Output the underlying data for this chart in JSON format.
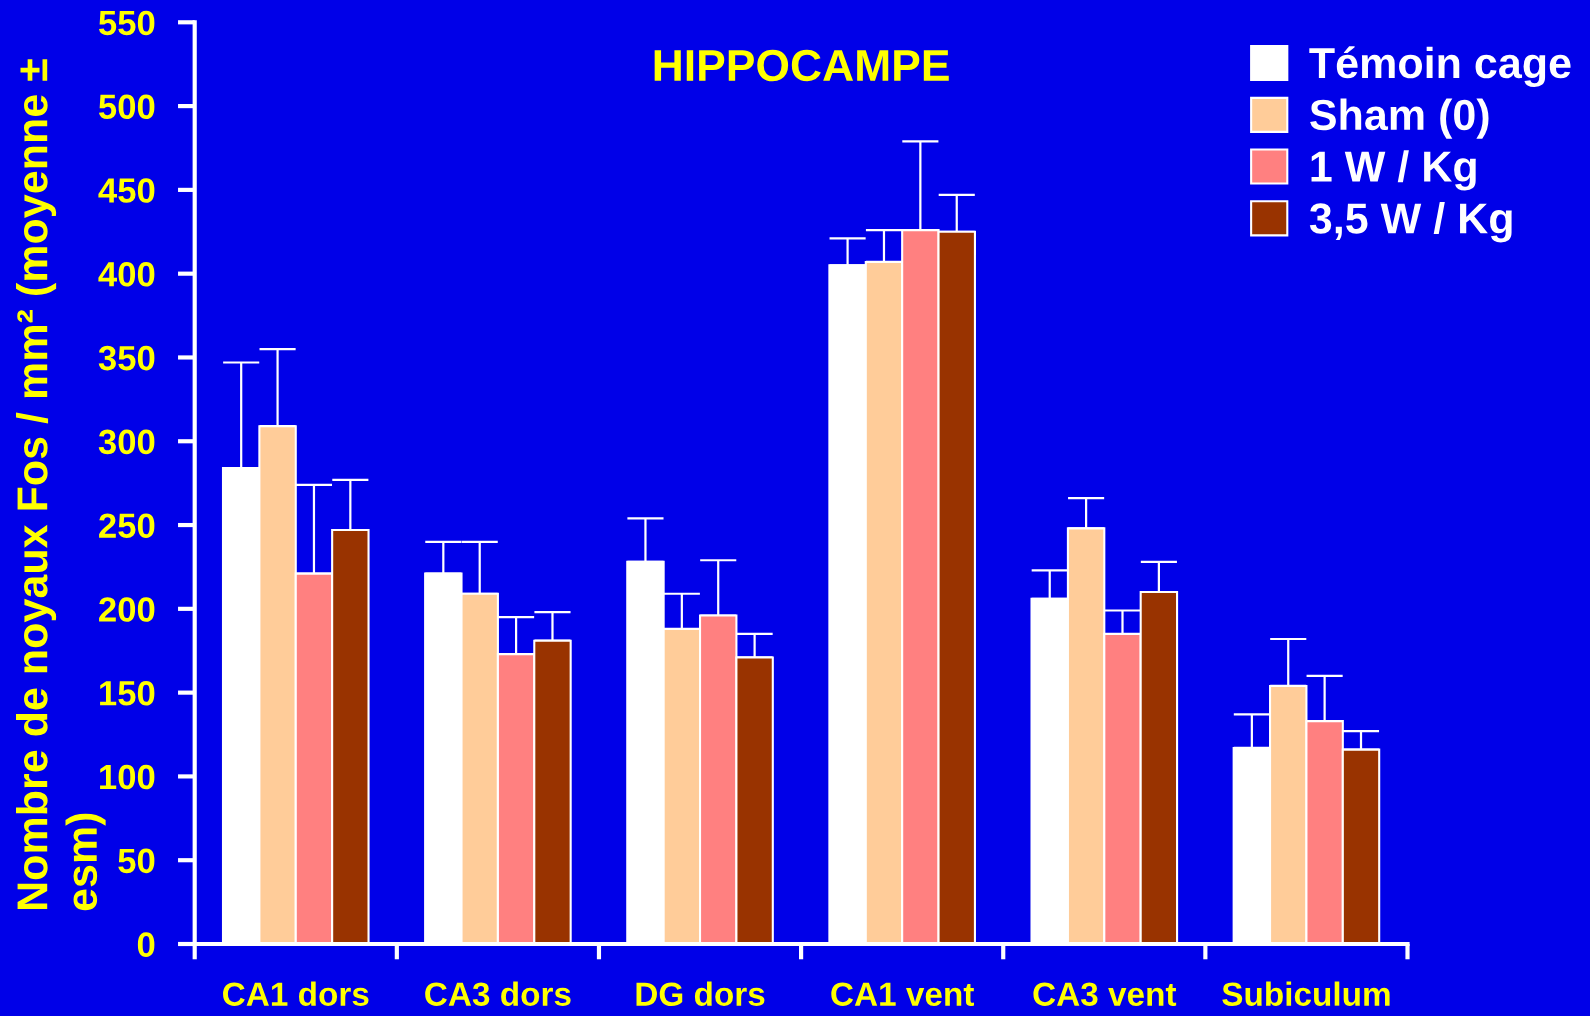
{
  "chart_data": {
    "type": "bar",
    "title": "HIPPOCAMPE",
    "ylabel": "Nombre de noyaux Fos / mm² (moyenne ± esm)",
    "categories": [
      "CA1 dors",
      "CA3 dors",
      "DG dors",
      "CA1 vent",
      "CA3 vent",
      "Subiculum"
    ],
    "series": [
      {
        "name": "Témoin cage",
        "color": "#ffffff",
        "values": [
          284,
          221,
          228,
          405,
          206,
          117
        ],
        "errors": [
          [
            284,
            347
          ],
          [
            221,
            240
          ],
          [
            228,
            254
          ],
          [
            405,
            421
          ],
          [
            206,
            223
          ],
          [
            117,
            137
          ]
        ]
      },
      {
        "name": "Sham (0)",
        "color": "#ffcc99",
        "values": [
          309,
          209,
          188,
          407,
          248,
          154
        ],
        "errors": [
          [
            309,
            355
          ],
          [
            209,
            240
          ],
          [
            188,
            209
          ],
          [
            407,
            426
          ],
          [
            248,
            266
          ],
          [
            154,
            182
          ]
        ]
      },
      {
        "name": "1 W / Kg",
        "color": "#ff8080",
        "values": [
          221,
          173,
          196,
          426,
          185,
          133
        ],
        "errors": [
          [
            221,
            274
          ],
          [
            173,
            195
          ],
          [
            196,
            229
          ],
          [
            426,
            479
          ],
          [
            185,
            199
          ],
          [
            133,
            160
          ]
        ]
      },
      {
        "name": "3,5 W / Kg",
        "color": "#993300",
        "values": [
          247,
          181,
          171,
          425,
          210,
          116
        ],
        "errors": [
          [
            247,
            277
          ],
          [
            181,
            198
          ],
          [
            171,
            185
          ],
          [
            425,
            447
          ],
          [
            210,
            228
          ],
          [
            116,
            127
          ]
        ]
      }
    ],
    "ylim": [
      0,
      550
    ],
    "yticks": [
      0,
      50,
      100,
      150,
      200,
      250,
      300,
      350,
      400,
      450,
      500,
      550
    ],
    "legend": "top right"
  }
}
